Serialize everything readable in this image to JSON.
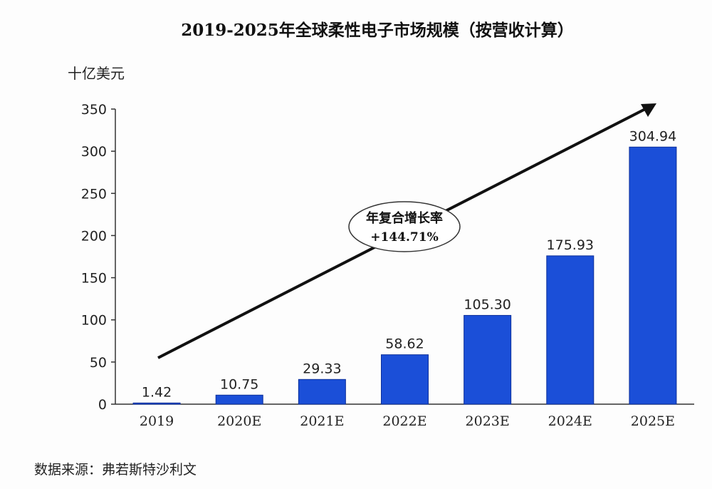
{
  "chart_data": {
    "type": "bar",
    "title": "2019-2025年全球柔性电子市场规模（按营收计算）",
    "ylabel": "十亿美元",
    "xlabel": "",
    "categories": [
      "2019",
      "2020E",
      "2021E",
      "2022E",
      "2023E",
      "2024E",
      "2025E"
    ],
    "values": [
      1.42,
      10.75,
      29.33,
      58.62,
      105.3,
      175.93,
      304.94
    ],
    "value_labels": [
      "1.42",
      "10.75",
      "29.33",
      "58.62",
      "105.30",
      "175.93",
      "304.94"
    ],
    "ylim": [
      0,
      350
    ],
    "yticks": [
      0,
      50,
      100,
      150,
      200,
      250,
      300,
      350
    ],
    "grid": false,
    "bar_color": "#1b4fd8",
    "annotation": {
      "line1": "年复合增长率",
      "line2": "+144.71%"
    },
    "trend_arrow": true,
    "source": "数据来源：弗若斯特沙利文"
  }
}
